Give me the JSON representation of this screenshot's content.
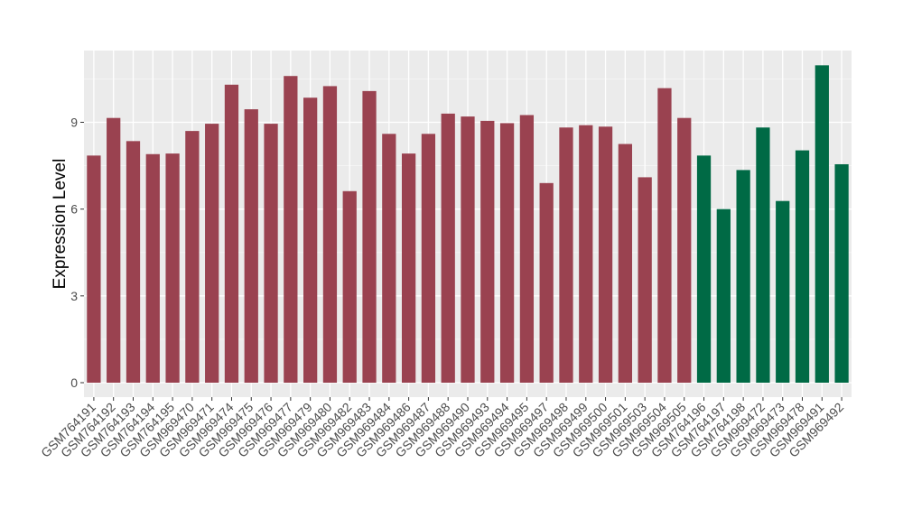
{
  "chart_data": {
    "type": "bar",
    "title": "",
    "xlabel": "",
    "ylabel": "Expression Level",
    "ylim": [
      0,
      11.2
    ],
    "yticks": [
      0,
      3,
      6,
      9
    ],
    "ytick_labels": [
      "0",
      "3",
      "6",
      "9"
    ],
    "categories": [
      "GSM764191",
      "GSM764192",
      "GSM764193",
      "GSM764194",
      "GSM764195",
      "GSM969470",
      "GSM969471",
      "GSM969474",
      "GSM969475",
      "GSM969476",
      "GSM969477",
      "GSM969479",
      "GSM969480",
      "GSM969482",
      "GSM969483",
      "GSM969484",
      "GSM969486",
      "GSM969487",
      "GSM969488",
      "GSM969490",
      "GSM969493",
      "GSM969494",
      "GSM969495",
      "GSM969497",
      "GSM969498",
      "GSM969499",
      "GSM969500",
      "GSM969501",
      "GSM969503",
      "GSM969504",
      "GSM969505",
      "GSM764196",
      "GSM764197",
      "GSM764198",
      "GSM969472",
      "GSM969473",
      "GSM969478",
      "GSM969491",
      "GSM969492"
    ],
    "values": [
      7.85,
      9.15,
      8.35,
      7.9,
      7.92,
      8.7,
      8.95,
      10.3,
      9.45,
      8.95,
      10.6,
      9.85,
      10.25,
      6.62,
      10.08,
      8.6,
      7.92,
      8.6,
      9.3,
      9.2,
      9.05,
      8.97,
      9.25,
      6.9,
      8.82,
      8.9,
      8.85,
      8.25,
      7.1,
      10.18,
      9.15,
      7.85,
      6.0,
      7.35,
      8.82,
      6.28,
      8.03,
      10.97,
      7.55
    ],
    "groups": [
      0,
      0,
      0,
      0,
      0,
      0,
      0,
      0,
      0,
      0,
      0,
      0,
      0,
      0,
      0,
      0,
      0,
      0,
      0,
      0,
      0,
      0,
      0,
      0,
      0,
      0,
      0,
      0,
      0,
      0,
      0,
      1,
      1,
      1,
      1,
      1,
      1,
      1,
      1
    ],
    "group_colors": [
      "#9a4250",
      "#006a45"
    ],
    "panel_background": "#ebebeb",
    "grid": true,
    "legend": "none"
  }
}
